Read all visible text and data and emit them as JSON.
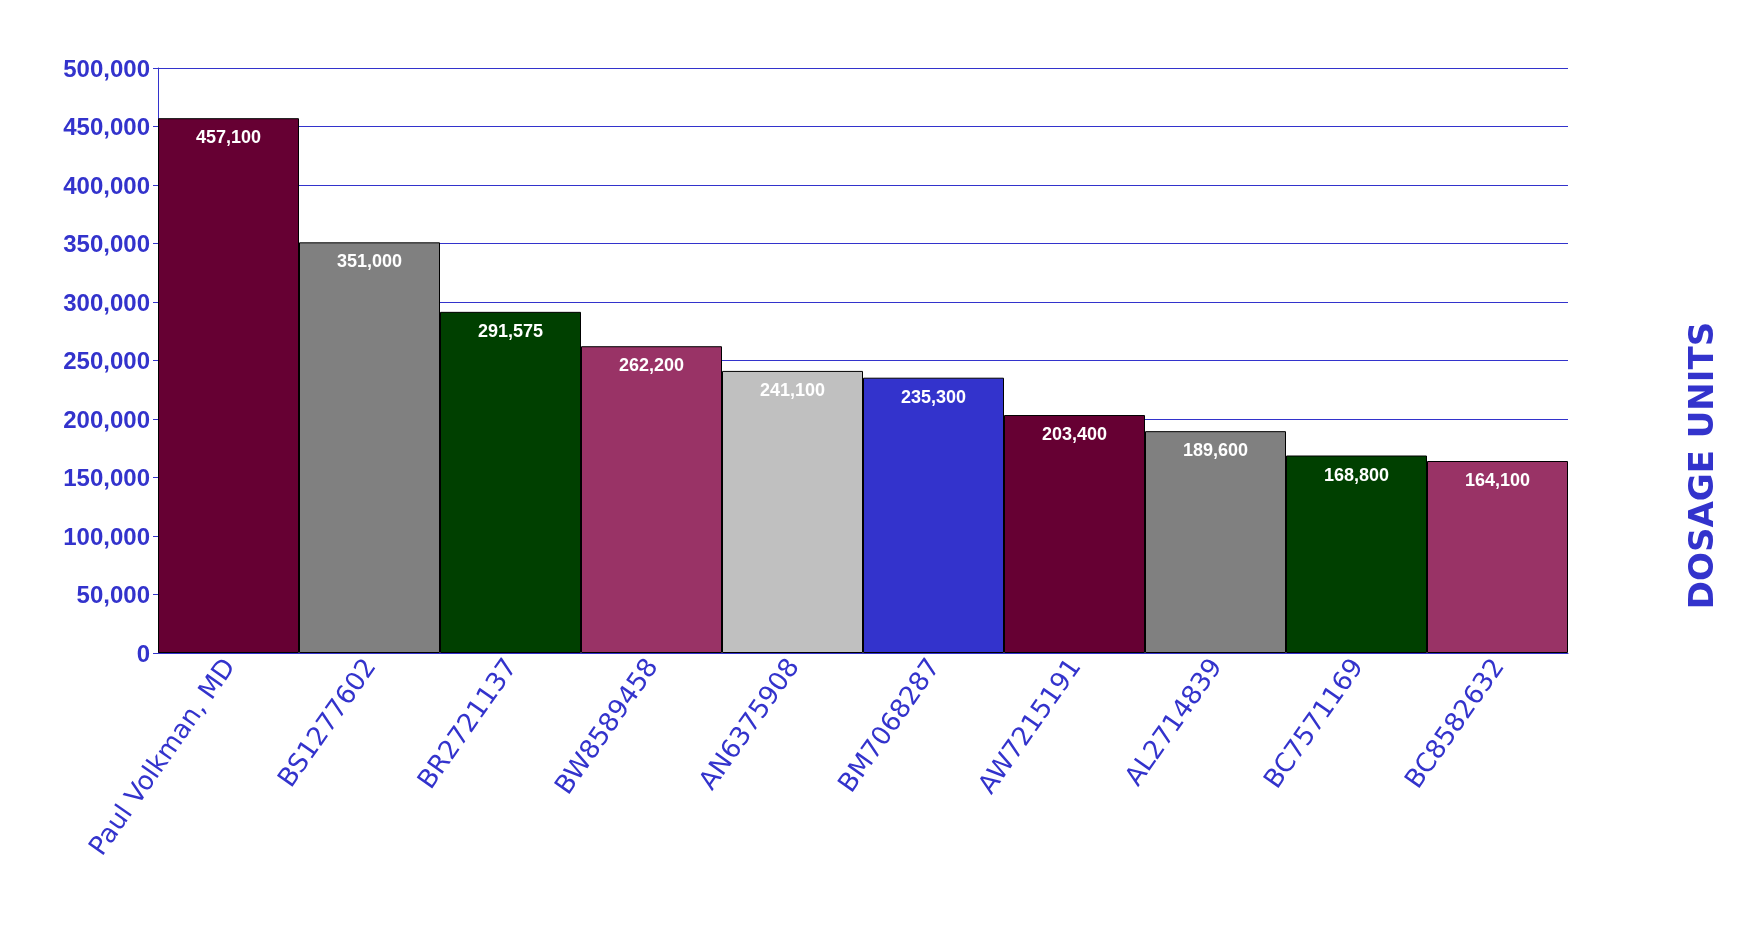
{
  "chart_data": {
    "type": "bar",
    "ylabel": "DOSAGE UNITS",
    "categories": [
      "Paul Volkman, MD",
      "BS1277602",
      "BR2721137",
      "BW8589458",
      "AN6375908",
      "BM7068287",
      "AW7215191",
      "AL2714839",
      "BC7571169",
      "BC8582632"
    ],
    "values": [
      457100,
      351000,
      291575,
      262200,
      241100,
      235300,
      203400,
      189600,
      168800,
      164100
    ],
    "value_labels": [
      "457,100",
      "351,000",
      "291,575",
      "262,200",
      "241,100",
      "235,300",
      "203,400",
      "189,600",
      "168,800",
      "164,100"
    ],
    "colors": [
      "#660033",
      "#808080",
      "#004000",
      "#993366",
      "#c0c0c0",
      "#3333cc",
      "#660033",
      "#808080",
      "#004000",
      "#993366"
    ],
    "ylim": [
      0,
      500000
    ],
    "yticks": [
      0,
      {
        "value": 50000,
        "label": "50,000"
      },
      {
        "value": 100000,
        "label": "100,000"
      },
      {
        "value": 150000,
        "label": "150,000"
      },
      {
        "value": 200000,
        "label": "200,000"
      },
      {
        "value": 250000,
        "label": "250,000"
      },
      {
        "value": 300000,
        "label": "300,000"
      },
      {
        "value": 350000,
        "label": "350,000"
      },
      {
        "value": 400000,
        "label": "400,000"
      },
      {
        "value": 450000,
        "label": "450,000"
      },
      {
        "value": 500000,
        "label": "500,000"
      }
    ],
    "grid": "y"
  }
}
